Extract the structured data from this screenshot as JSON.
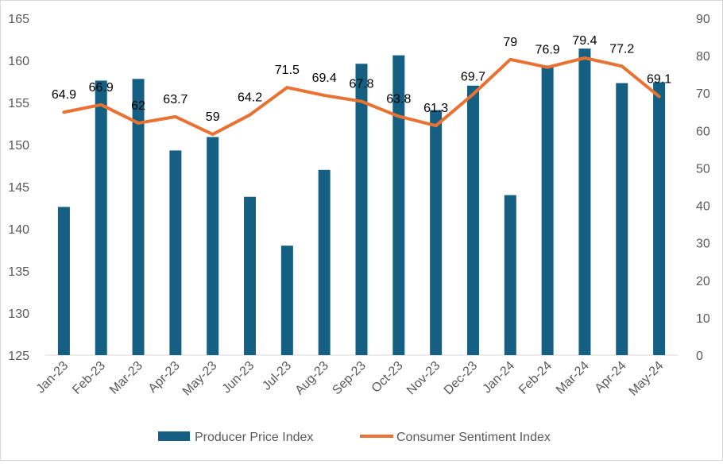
{
  "chart_data": {
    "type": "bar",
    "categories": [
      "Jan-23",
      "Feb-23",
      "Mar-23",
      "Apr-23",
      "May-23",
      "Jun-23",
      "Jul-23",
      "Aug-23",
      "Sep-23",
      "Oct-23",
      "Nov-23",
      "Dec-23",
      "Jan-24",
      "Feb-24",
      "Mar-24",
      "Apr-24",
      "May-24"
    ],
    "series": [
      {
        "name": "Producer Price Index",
        "type": "bar",
        "axis": "left",
        "color": "#156082",
        "values": [
          142.6,
          157.6,
          157.8,
          149.3,
          150.9,
          143.8,
          138.0,
          147.0,
          159.6,
          160.6,
          154.1,
          157.0,
          144.0,
          159.4,
          161.4,
          157.3,
          157.4
        ]
      },
      {
        "name": "Consumer Sentiment Index",
        "type": "line",
        "axis": "right",
        "color": "#e97132",
        "values": [
          64.9,
          66.9,
          62,
          63.7,
          59,
          64.2,
          71.5,
          69.4,
          67.8,
          63.8,
          61.3,
          69.7,
          79,
          76.9,
          79.4,
          77.2,
          69.1
        ],
        "labels": [
          "64.9",
          "66.9",
          "62",
          "63.7",
          "59",
          "64.2",
          "71.5",
          "69.4",
          "67.8",
          "63.8",
          "61.3",
          "69.7",
          "79",
          "76.9",
          "79.4",
          "77.2",
          "69.1"
        ]
      }
    ],
    "y_left": {
      "min": 125,
      "max": 165,
      "ticks": [
        "125",
        "130",
        "135",
        "140",
        "145",
        "150",
        "155",
        "160",
        "165"
      ]
    },
    "y_right": {
      "min": 0,
      "max": 90,
      "ticks": [
        "0",
        "10",
        "20",
        "30",
        "40",
        "50",
        "60",
        "70",
        "80",
        "90"
      ]
    },
    "grid": false,
    "legend": "bottom",
    "title": "",
    "xlabel": "",
    "ylabel": ""
  }
}
